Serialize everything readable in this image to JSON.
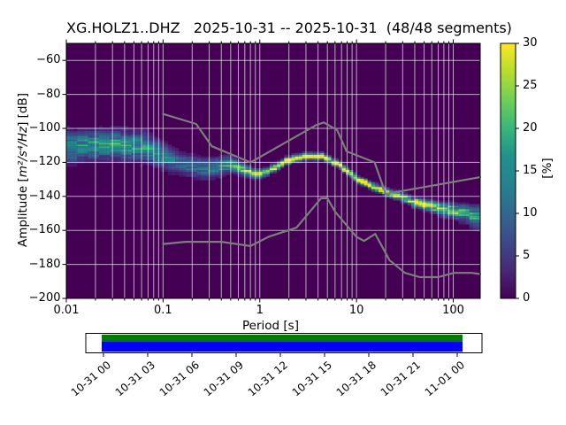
{
  "figure": {
    "title": "XG.HOLZ1..DHZ   2025-10-31 -- 2025-10-31  (48/48 segments)"
  },
  "axes": {
    "ylabel_prefix": "Amplitude [",
    "ylabel_math": "m²/s⁴/Hz",
    "ylabel_suffix": "] [dB]",
    "xlabel": "Period [s]"
  },
  "colors": {
    "figure_bg": "#ffffff",
    "plot_bg": "#440154",
    "grid": "rgba(255,255,255,0.65)",
    "noise_model_line": "#7d7d7d",
    "axis": "#000000",
    "coverage_green": "#007c00",
    "coverage_blue": "#0000ff",
    "colorbar_max": "#fde725"
  },
  "chart_data": {
    "type": "heatmap",
    "title": "XG.HOLZ1..DHZ   2025-10-31 -- 2025-10-31  (48/48 segments)",
    "xlabel": "Period [s]",
    "ylabel": "Amplitude [m^2/s^4/Hz] [dB]",
    "x_scale": "log",
    "xlim": [
      0.01,
      190
    ],
    "ylim": [
      -200,
      -50
    ],
    "grid": true,
    "x_tick_values": [
      0.01,
      0.1,
      1,
      10,
      100
    ],
    "x_tick_labels": [
      "0.01",
      "0.1",
      "1",
      "10",
      "100"
    ],
    "y_tick_values": [
      -60,
      -80,
      -100,
      -120,
      -140,
      -160,
      -180,
      -200
    ],
    "y_tick_labels": [
      "−60",
      "−80",
      "−100",
      "−120",
      "−140",
      "−160",
      "−180",
      "−200"
    ],
    "colormap": "viridis",
    "colormap_stops": [
      "#440154",
      "#482878",
      "#3e4989",
      "#31688e",
      "#26828e",
      "#21918c",
      "#35b779",
      "#6ece58",
      "#b5de2b",
      "#fde725"
    ],
    "colorbar": {
      "label": "[%]",
      "min": 0,
      "max": 30,
      "tick_values": [
        0,
        5,
        10,
        15,
        20,
        25,
        30
      ],
      "tick_labels": [
        "0",
        "5",
        "10",
        "15",
        "20",
        "25",
        "30"
      ]
    },
    "psd_distribution_note": "columns: [period_s, center_dB, spread_dB, peak_percent]",
    "psd_distribution": [
      [
        0.01,
        -111.5,
        5.5,
        13
      ],
      [
        0.016,
        -110.0,
        5.0,
        14
      ],
      [
        0.03,
        -109.5,
        5.0,
        15
      ],
      [
        0.06,
        -110.5,
        5.0,
        14
      ],
      [
        0.1,
        -116.0,
        4.5,
        12
      ],
      [
        0.15,
        -120.5,
        3.8,
        10
      ],
      [
        0.25,
        -123.5,
        3.8,
        10
      ],
      [
        0.4,
        -122.5,
        3.2,
        13
      ],
      [
        0.5,
        -121.0,
        2.8,
        16
      ],
      [
        0.7,
        -124.5,
        2.0,
        20
      ],
      [
        0.9,
        -126.7,
        1.6,
        24
      ],
      [
        1.2,
        -125.5,
        1.4,
        26
      ],
      [
        2.0,
        -118.5,
        1.3,
        28
      ],
      [
        3.0,
        -116.5,
        1.2,
        30
      ],
      [
        4.5,
        -116.5,
        1.2,
        30
      ],
      [
        6.5,
        -121.0,
        1.2,
        29
      ],
      [
        8.0,
        -125.0,
        1.2,
        29
      ],
      [
        10.0,
        -129.5,
        1.2,
        28
      ],
      [
        17.0,
        -135.5,
        1.3,
        27
      ],
      [
        23.0,
        -138.5,
        1.4,
        26
      ],
      [
        40.0,
        -143.5,
        1.6,
        25
      ],
      [
        60.0,
        -146.0,
        2.0,
        23
      ],
      [
        100.0,
        -148.5,
        2.6,
        19
      ],
      [
        140.0,
        -150.5,
        3.2,
        16
      ],
      [
        190.0,
        -152.5,
        4.2,
        13
      ]
    ],
    "noise_models": {
      "note": "Peterson new high/low noise models, [period_s, dB]",
      "nhnm": [
        [
          0.1,
          -91.5
        ],
        [
          0.22,
          -97.4
        ],
        [
          0.32,
          -110.5
        ],
        [
          0.8,
          -120.0
        ],
        [
          3.8,
          -98.1
        ],
        [
          4.6,
          -96.5
        ],
        [
          6.3,
          -101.0
        ],
        [
          7.9,
          -113.5
        ],
        [
          15.4,
          -120.0
        ],
        [
          20.0,
          -138.5
        ],
        [
          190.0,
          -128.7
        ]
      ],
      "nlnm": [
        [
          0.1,
          -168.0
        ],
        [
          0.17,
          -166.7
        ],
        [
          0.4,
          -166.7
        ],
        [
          0.8,
          -169.2
        ],
        [
          1.24,
          -163.7
        ],
        [
          2.4,
          -158.4
        ],
        [
          4.3,
          -141.1
        ],
        [
          5.0,
          -141.1
        ],
        [
          6.0,
          -149.0
        ],
        [
          10.0,
          -163.8
        ],
        [
          12.0,
          -166.2
        ],
        [
          15.6,
          -162.1
        ],
        [
          21.9,
          -177.5
        ],
        [
          31.6,
          -185.0
        ],
        [
          45.0,
          -187.5
        ],
        [
          70.0,
          -187.5
        ],
        [
          101.0,
          -185.0
        ],
        [
          154.0,
          -185.0
        ],
        [
          190.0,
          -185.7
        ]
      ]
    }
  },
  "timeline": {
    "tick_labels": [
      "10-31 00",
      "10-31 03",
      "10-31 06",
      "10-31 09",
      "10-31 12",
      "10-31 15",
      "10-31 18",
      "10-31 21",
      "11-01 00"
    ]
  }
}
